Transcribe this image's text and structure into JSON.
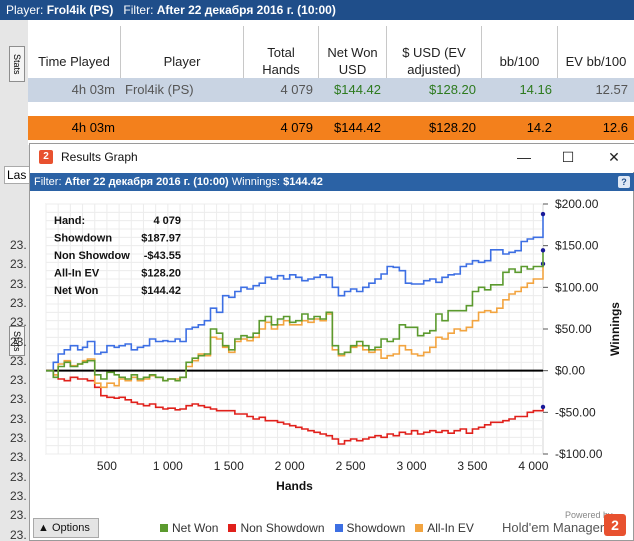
{
  "top_bar": {
    "player_label": "Player:",
    "player": "Frol4ik (PS)",
    "filter_label": "Filter:",
    "filter": "After 22 декабря 2016 г. (10:00)"
  },
  "left_tabs": {
    "stats": "Stats",
    "stats2": "Stats"
  },
  "stats_table": {
    "headers": [
      "Time Played",
      "Player",
      "Total Hands",
      "Net Won USD",
      "$ USD (EV adjusted)",
      "bb/100",
      "EV bb/100"
    ],
    "row": [
      "4h 03m",
      "Frol4ik (PS)",
      "4 079",
      "$144.42",
      "$128.20",
      "14.16",
      "12.57"
    ],
    "total": [
      "4h 03m",
      "",
      "4 079",
      "$144.42",
      "$128.20",
      "14.2",
      "12.6"
    ]
  },
  "background_rows": {
    "last_field": "Las",
    "nums": [
      "23.",
      "23.",
      "23.",
      "23.",
      "23.",
      "23.",
      "23.",
      "23.",
      "23.",
      "23.",
      "23.",
      "23.",
      "23.",
      "23.",
      "23.",
      "23.",
      "23."
    ]
  },
  "window": {
    "title": "Results Graph",
    "minimize": "—",
    "maximize": "☐",
    "close": "✕",
    "filter_label": "Filter:",
    "filter_value": "After 22 декабря 2016 г. (10:00)",
    "winnings_label": "Winnings:",
    "winnings_value": "$144.42",
    "help": "?"
  },
  "stats_box": [
    {
      "label": "Hand:",
      "value": "4 079"
    },
    {
      "label": "Showdown",
      "value": "$187.97"
    },
    {
      "label": "Non Showdow",
      "value": "-$43.55"
    },
    {
      "label": "All-In EV",
      "value": "$128.20"
    },
    {
      "label": "Net Won",
      "value": "$144.42"
    }
  ],
  "bottom": {
    "options": "Options",
    "powered": "Powered by",
    "brand": "Hold'em Manager",
    "brand_icon": "2"
  },
  "colors": {
    "net_won": "#5b9a2e",
    "non_showdown": "#e0201b",
    "showdown": "#3d6fe3",
    "all_in_ev": "#f2a440"
  },
  "chart_data": {
    "type": "line",
    "xlabel": "Hands",
    "ylabel": "Winnings",
    "xlim": [
      0,
      4079
    ],
    "ylim": [
      -100,
      200
    ],
    "x_ticks": [
      500,
      1000,
      1500,
      2000,
      2500,
      3000,
      3500,
      4000
    ],
    "x_tick_labels": [
      "500",
      "1 000",
      "1 500",
      "2 000",
      "2 500",
      "3 000",
      "3 500",
      "4 000"
    ],
    "y_ticks": [
      200,
      150,
      100,
      50,
      0,
      -50,
      -100
    ],
    "y_tick_labels": [
      "$200.00",
      "$150.00",
      "$100.00",
      "$50.00",
      "$0.00",
      "-$50.00",
      "-$100.00"
    ],
    "grid": true,
    "legend": "bottom",
    "series": [
      {
        "name": "Net Won",
        "color": "#5b9a2e",
        "x": [
          0,
          60,
          100,
          150,
          200,
          260,
          300,
          340,
          400,
          450,
          500,
          560,
          600,
          650,
          700,
          750,
          800,
          850,
          900,
          960,
          1000,
          1060,
          1100,
          1150,
          1200,
          1250,
          1300,
          1350,
          1400,
          1450,
          1500,
          1550,
          1600,
          1650,
          1700,
          1750,
          1800,
          1850,
          1900,
          1950,
          2000,
          2050,
          2100,
          2150,
          2200,
          2250,
          2300,
          2350,
          2400,
          2450,
          2500,
          2550,
          2600,
          2650,
          2700,
          2750,
          2800,
          2850,
          2900,
          2950,
          3000,
          3050,
          3100,
          3150,
          3200,
          3250,
          3300,
          3350,
          3400,
          3450,
          3500,
          3550,
          3600,
          3650,
          3700,
          3750,
          3800,
          3850,
          3900,
          3950,
          4000,
          4079
        ],
        "y": [
          0,
          -8,
          5,
          10,
          5,
          8,
          10,
          12,
          -5,
          -10,
          -2,
          -5,
          -8,
          -10,
          -5,
          -10,
          -8,
          -5,
          -8,
          -12,
          -10,
          -12,
          -8,
          10,
          15,
          18,
          20,
          50,
          45,
          30,
          25,
          38,
          42,
          40,
          45,
          60,
          65,
          55,
          62,
          65,
          58,
          60,
          68,
          62,
          65,
          62,
          70,
          30,
          20,
          22,
          30,
          35,
          30,
          25,
          28,
          38,
          35,
          38,
          55,
          52,
          52,
          42,
          45,
          48,
          68,
          60,
          72,
          72,
          72,
          78,
          95,
          100,
          97,
          103,
          103,
          118,
          122,
          118,
          125,
          122,
          125,
          144.42
        ]
      },
      {
        "name": "Non Showdown",
        "color": "#e0201b",
        "x": [
          0,
          60,
          100,
          150,
          200,
          260,
          300,
          340,
          400,
          450,
          500,
          560,
          600,
          650,
          700,
          750,
          800,
          850,
          900,
          960,
          1000,
          1060,
          1100,
          1150,
          1200,
          1250,
          1300,
          1350,
          1400,
          1450,
          1500,
          1550,
          1600,
          1650,
          1700,
          1750,
          1800,
          1850,
          1900,
          1950,
          2000,
          2050,
          2100,
          2150,
          2200,
          2250,
          2300,
          2350,
          2400,
          2450,
          2500,
          2550,
          2600,
          2650,
          2700,
          2750,
          2800,
          2850,
          2900,
          2950,
          3000,
          3050,
          3100,
          3150,
          3200,
          3250,
          3300,
          3350,
          3400,
          3450,
          3500,
          3550,
          3600,
          3650,
          3700,
          3750,
          3800,
          3850,
          3900,
          3950,
          4000,
          4079
        ],
        "y": [
          0,
          -5,
          -10,
          -12,
          -8,
          -10,
          -10,
          -12,
          -20,
          -30,
          -32,
          -33,
          -32,
          -35,
          -38,
          -40,
          -42,
          -40,
          -44,
          -46,
          -45,
          -47,
          -46,
          -42,
          -40,
          -42,
          -44,
          -46,
          -48,
          -48,
          -48,
          -52,
          -52,
          -55,
          -58,
          -56,
          -60,
          -60,
          -62,
          -64,
          -66,
          -68,
          -70,
          -72,
          -74,
          -76,
          -78,
          -82,
          -88,
          -84,
          -82,
          -84,
          -82,
          -80,
          -78,
          -80,
          -76,
          -78,
          -74,
          -76,
          -72,
          -76,
          -74,
          -72,
          -74,
          -72,
          -75,
          -72,
          -70,
          -75,
          -70,
          -68,
          -65,
          -62,
          -62,
          -60,
          -58,
          -55,
          -55,
          -50,
          -48,
          -43.55
        ]
      },
      {
        "name": "Showdown",
        "color": "#3d6fe3",
        "x": [
          0,
          60,
          100,
          150,
          200,
          260,
          300,
          340,
          400,
          450,
          500,
          560,
          600,
          650,
          700,
          750,
          800,
          850,
          900,
          960,
          1000,
          1060,
          1100,
          1150,
          1200,
          1250,
          1300,
          1350,
          1400,
          1450,
          1500,
          1550,
          1600,
          1650,
          1700,
          1750,
          1800,
          1850,
          1900,
          1950,
          2000,
          2050,
          2100,
          2150,
          2200,
          2250,
          2300,
          2350,
          2400,
          2450,
          2500,
          2550,
          2600,
          2650,
          2700,
          2750,
          2800,
          2850,
          2900,
          2950,
          3000,
          3050,
          3100,
          3150,
          3200,
          3250,
          3300,
          3350,
          3400,
          3450,
          3500,
          3550,
          3600,
          3650,
          3700,
          3750,
          3800,
          3850,
          3900,
          3950,
          4000,
          4079
        ],
        "y": [
          0,
          10,
          20,
          25,
          30,
          25,
          28,
          35,
          20,
          22,
          30,
          28,
          30,
          32,
          25,
          28,
          30,
          38,
          35,
          36,
          35,
          38,
          35,
          50,
          52,
          55,
          60,
          75,
          70,
          90,
          88,
          95,
          100,
          98,
          102,
          105,
          112,
          110,
          114,
          110,
          115,
          112,
          108,
          110,
          112,
          115,
          112,
          100,
          90,
          95,
          98,
          95,
          100,
          105,
          110,
          116,
          125,
          124,
          120,
          105,
          104,
          104,
          108,
          110,
          106,
          112,
          115,
          116,
          125,
          128,
          132,
          130,
          132,
          145,
          145,
          140,
          142,
          144,
          155,
          158,
          160,
          187.97
        ]
      },
      {
        "name": "All-In EV",
        "color": "#f2a440",
        "x": [
          0,
          60,
          100,
          150,
          200,
          260,
          300,
          340,
          400,
          450,
          500,
          560,
          600,
          650,
          700,
          750,
          800,
          850,
          900,
          960,
          1000,
          1060,
          1100,
          1150,
          1200,
          1250,
          1300,
          1350,
          1400,
          1450,
          1500,
          1550,
          1600,
          1650,
          1700,
          1750,
          1800,
          1850,
          1900,
          1950,
          2000,
          2050,
          2100,
          2150,
          2200,
          2250,
          2300,
          2350,
          2400,
          2450,
          2500,
          2550,
          2600,
          2650,
          2700,
          2750,
          2800,
          2850,
          2900,
          2950,
          3000,
          3050,
          3100,
          3150,
          3200,
          3250,
          3300,
          3350,
          3400,
          3450,
          3500,
          3550,
          3600,
          3650,
          3700,
          3750,
          3800,
          3850,
          3900,
          3950,
          4000,
          4079
        ],
        "y": [
          0,
          -5,
          8,
          12,
          6,
          8,
          12,
          14,
          -15,
          -20,
          -15,
          -18,
          -10,
          -12,
          -8,
          -12,
          -10,
          -6,
          -8,
          -12,
          -10,
          -10,
          -8,
          5,
          12,
          20,
          18,
          40,
          38,
          28,
          22,
          35,
          38,
          36,
          40,
          50,
          58,
          50,
          55,
          60,
          55,
          55,
          60,
          58,
          62,
          60,
          68,
          25,
          18,
          22,
          28,
          30,
          25,
          22,
          25,
          15,
          18,
          20,
          30,
          25,
          20,
          18,
          22,
          28,
          40,
          38,
          45,
          50,
          48,
          52,
          60,
          70,
          72,
          70,
          75,
          85,
          92,
          95,
          100,
          105,
          110,
          128.2
        ]
      }
    ]
  }
}
